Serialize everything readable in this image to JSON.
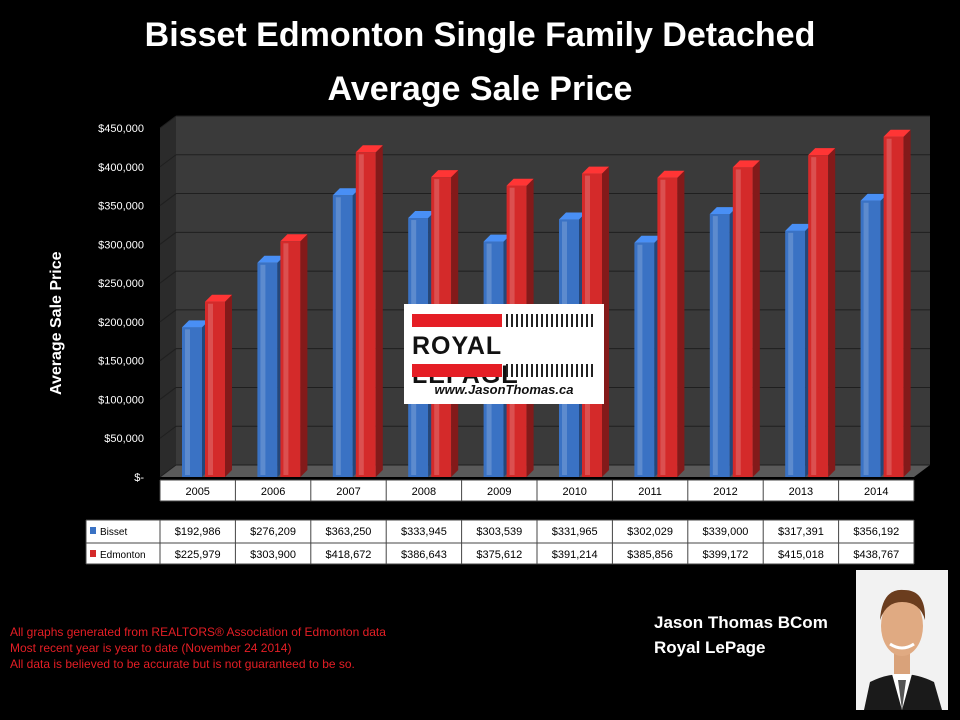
{
  "title_line1": "Bisset Edmonton Single Family Detached",
  "title_line2": "Average Sale Price",
  "logo": {
    "brand": "ROYAL LEPAGE",
    "url": "www.JasonThomas.ca"
  },
  "footnotes": [
    "All graphs generated from REALTORS® Association of Edmonton data",
    "Most recent year is year to date (November 24 2014)",
    "All data is believed to be accurate but is not guaranteed to be so."
  ],
  "signature": {
    "name": "Jason Thomas BCom",
    "company": "Royal LePage"
  },
  "colors": {
    "bisset": "#3a72c4",
    "edmonton": "#d42a2a"
  },
  "chart_data": {
    "type": "bar",
    "title": "",
    "xlabel": "Average Sale Price",
    "ylabel": "Average Sale Price",
    "ylim": [
      0,
      450000
    ],
    "yticks": [
      0,
      50000,
      100000,
      150000,
      200000,
      250000,
      300000,
      350000,
      400000,
      450000
    ],
    "ytick_labels": [
      "$-",
      "$50,000",
      "$100,000",
      "$150,000",
      "$200,000",
      "$250,000",
      "$300,000",
      "$350,000",
      "$400,000",
      "$450,000"
    ],
    "categories": [
      "2005",
      "2006",
      "2007",
      "2008",
      "2009",
      "2010",
      "2011",
      "2012",
      "2013",
      "2014"
    ],
    "series": [
      {
        "name": "Bisset",
        "values": [
          192986,
          276209,
          363250,
          333945,
          303539,
          331965,
          302029,
          339000,
          317391,
          356192
        ],
        "labels": [
          "$192,986",
          "$276,209",
          "$363,250",
          "$333,945",
          "$303,539",
          "$331,965",
          "$302,029",
          "$339,000",
          "$317,391",
          "$356,192"
        ]
      },
      {
        "name": "Edmonton",
        "values": [
          225979,
          303900,
          418672,
          386643,
          375612,
          391214,
          385856,
          399172,
          415018,
          438767
        ],
        "labels": [
          "$225,979",
          "$303,900",
          "$418,672",
          "$386,643",
          "$375,612",
          "$391,214",
          "$385,856",
          "$399,172",
          "$415,018",
          "$438,767"
        ]
      }
    ],
    "grid": true,
    "legend": "data-table"
  }
}
